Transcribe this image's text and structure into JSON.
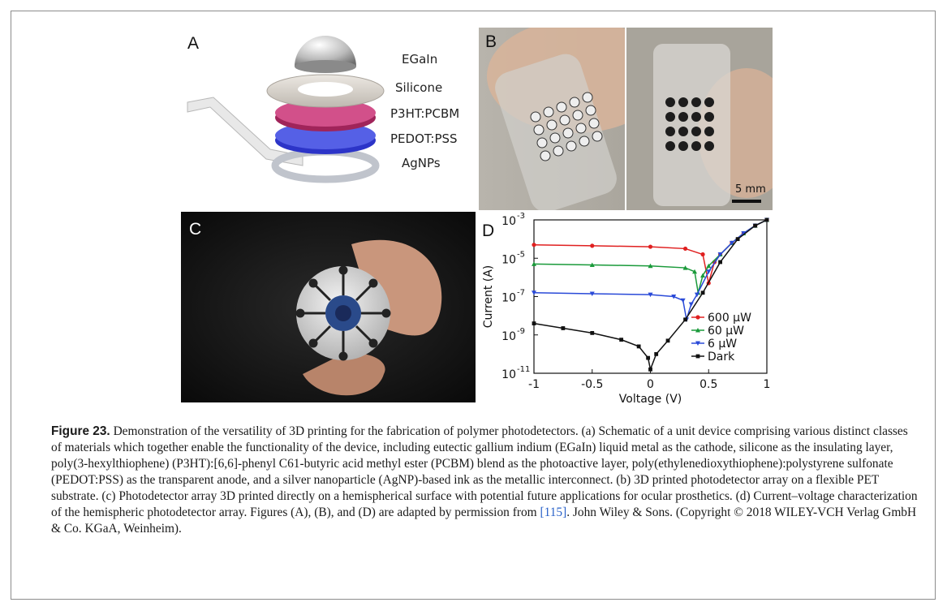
{
  "figure": {
    "panels": {
      "a": {
        "letter": "A",
        "layers": [
          "EGaIn",
          "Silicone",
          "P3HT:PCBM",
          "PEDOT:PSS",
          "AgNPs"
        ]
      },
      "b": {
        "letter": "B",
        "scale_bar": "5 mm"
      },
      "c": {
        "letter": "C"
      },
      "d": {
        "letter": "D"
      }
    },
    "caption": {
      "label": "Figure 23.",
      "text": "Demonstration of the versatility of 3D printing for the fabrication of polymer photodetectors. (a) Schematic of a unit device comprising various distinct classes of materials which together enable the functionality of the device, including eutectic gallium indium (EGaIn) liquid metal as the cathode, silicone as the insulating layer, poly(3-hexylthiophene) (P3HT):[6,6]-phenyl C61-butyric acid methyl ester (PCBM) blend as the photoactive layer, poly(ethylenedioxythiophene):polystyrene sulfonate (PEDOT:PSS) as the transparent anode, and a silver nanoparticle (AgNP)-based ink as the metallic interconnect. (b) 3D printed photodetector array on a flexible PET substrate. (c) Photodetector array 3D printed directly on a hemispherical surface with potential future applications for ocular prosthetics. (d) Current–voltage characterization of the hemispheric photodetector array. Figures (A), (B), and (D) are adapted by permission from ",
      "ref": "[115]",
      "tail": ". John Wiley & Sons. (Copyright © 2018 WILEY-VCH Verlag GmbH & Co. KGaA, Weinheim)."
    }
  },
  "chart_data": {
    "type": "line",
    "xlabel": "Voltage (V)",
    "ylabel": "Current (A)",
    "xlim": [
      -1,
      1
    ],
    "ylim": [
      1e-11,
      0.001
    ],
    "yscale": "log",
    "xticks": [
      "-1",
      "-0.5",
      "0",
      "0.5",
      "1"
    ],
    "yticks": [
      {
        "base": "10",
        "exp": "-11",
        "value": -11
      },
      {
        "base": "10",
        "exp": "-9",
        "value": -9
      },
      {
        "base": "10",
        "exp": "-7",
        "value": -7
      },
      {
        "base": "10",
        "exp": "-5",
        "value": -5
      },
      {
        "base": "10",
        "exp": "-3",
        "value": -3
      }
    ],
    "legend_position": "bottom-right",
    "series": [
      {
        "name": "600 µW",
        "color": "#e02020",
        "marker": "circle",
        "x": [
          -1,
          -0.5,
          0,
          0.3,
          0.45,
          0.5,
          0.55,
          0.6,
          0.7,
          0.8,
          0.9,
          1
        ],
        "logy": [
          -4.3,
          -4.35,
          -4.4,
          -4.5,
          -4.8,
          -6.3,
          -5.2,
          -4.8,
          -4.2,
          -3.7,
          -3.3,
          -3.0
        ]
      },
      {
        "name": "60 µW",
        "color": "#1a9a3a",
        "marker": "triangle-up",
        "x": [
          -1,
          -0.5,
          0,
          0.3,
          0.38,
          0.41,
          0.45,
          0.5,
          0.6,
          0.7,
          0.8,
          0.9,
          1
        ],
        "logy": [
          -5.3,
          -5.35,
          -5.4,
          -5.5,
          -5.7,
          -6.8,
          -5.9,
          -5.4,
          -4.8,
          -4.2,
          -3.7,
          -3.3,
          -3.0
        ]
      },
      {
        "name": "6 µW",
        "color": "#2a4ad8",
        "marker": "triangle-down",
        "x": [
          -1,
          -0.5,
          0,
          0.2,
          0.28,
          0.31,
          0.35,
          0.4,
          0.5,
          0.6,
          0.7,
          0.8,
          0.9,
          1
        ],
        "logy": [
          -6.8,
          -6.85,
          -6.9,
          -7.0,
          -7.2,
          -8.2,
          -7.4,
          -6.9,
          -5.7,
          -4.8,
          -4.2,
          -3.7,
          -3.3,
          -3.0
        ]
      },
      {
        "name": "Dark",
        "color": "#111111",
        "marker": "square",
        "x": [
          -1,
          -0.75,
          -0.5,
          -0.25,
          -0.1,
          -0.02,
          0,
          0.05,
          0.15,
          0.3,
          0.45,
          0.6,
          0.75,
          0.9,
          1
        ],
        "logy": [
          -8.4,
          -8.65,
          -8.9,
          -9.25,
          -9.6,
          -10.2,
          -10.8,
          -10.0,
          -9.3,
          -8.2,
          -6.8,
          -5.2,
          -4.0,
          -3.3,
          -3.0
        ]
      }
    ]
  }
}
